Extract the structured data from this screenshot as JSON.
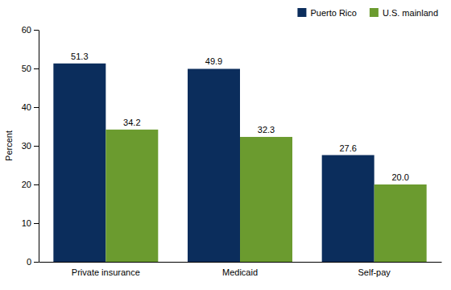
{
  "chart_data": {
    "type": "bar",
    "categories": [
      "Private insurance",
      "Medicaid",
      "Self-pay"
    ],
    "series": [
      {
        "name": "Puerto Rico",
        "color": "#0b2d5c",
        "values": [
          51.3,
          49.9,
          27.6
        ],
        "value_labels": [
          "51.3",
          "49.9",
          "27.6"
        ]
      },
      {
        "name": "U.S. mainland",
        "color": "#6b9b2f",
        "values": [
          34.2,
          32.3,
          20.0
        ],
        "value_labels": [
          "34.2",
          "32.3",
          "20.0"
        ]
      }
    ],
    "y_label": "Percent",
    "ylim": [
      0,
      60
    ],
    "yticks": [
      0,
      10,
      20,
      30,
      40,
      50,
      60
    ],
    "legend": "top-right",
    "data_labels": true
  }
}
